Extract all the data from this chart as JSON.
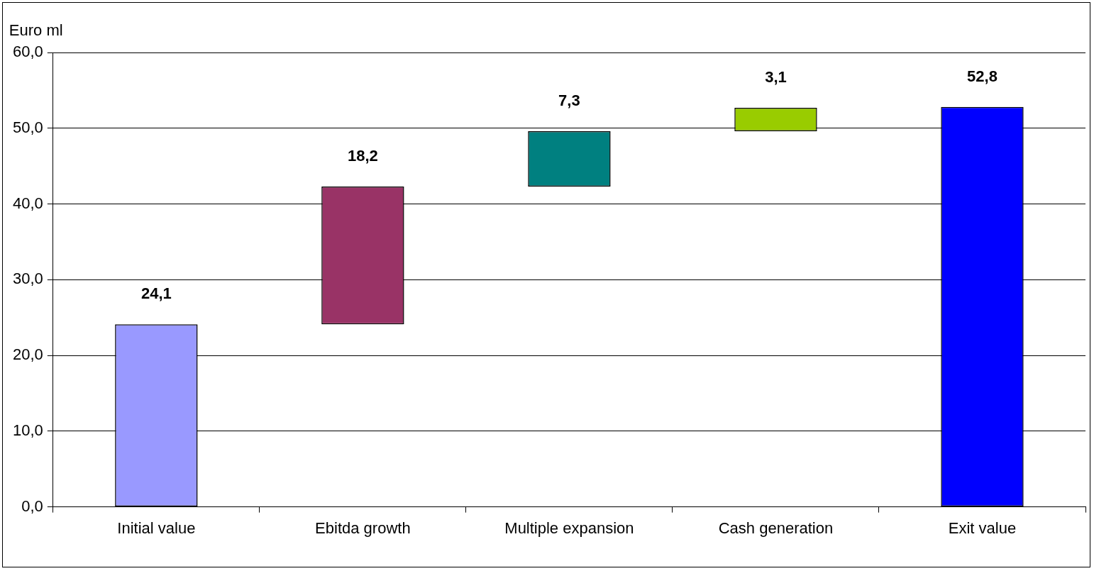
{
  "chart_data": {
    "type": "bar",
    "ylabel": "Euro ml",
    "categories": [
      "Initial value",
      "Ebitda growth",
      "Multiple expansion",
      "Cash generation",
      "Exit value"
    ],
    "values": [
      24.1,
      18.2,
      7.3,
      3.1,
      52.8
    ],
    "base": [
      0,
      24.1,
      42.3,
      49.6,
      0
    ],
    "colors": [
      "#9999ff",
      "#993366",
      "#008080",
      "#99cc00",
      "#0000ff"
    ],
    "value_labels": [
      "24,1",
      "18,2",
      "7,3",
      "3,1",
      "52,8"
    ],
    "ylim": [
      0,
      60
    ],
    "yticks": [
      {
        "value": 0,
        "label": "0,0"
      },
      {
        "value": 10,
        "label": "10,0"
      },
      {
        "value": 20,
        "label": "20,0"
      },
      {
        "value": 30,
        "label": "30,0"
      },
      {
        "value": 40,
        "label": "40,0"
      },
      {
        "value": 50,
        "label": "50,0"
      },
      {
        "value": 60,
        "label": "60,0"
      }
    ],
    "grid": "y",
    "legend": false
  }
}
